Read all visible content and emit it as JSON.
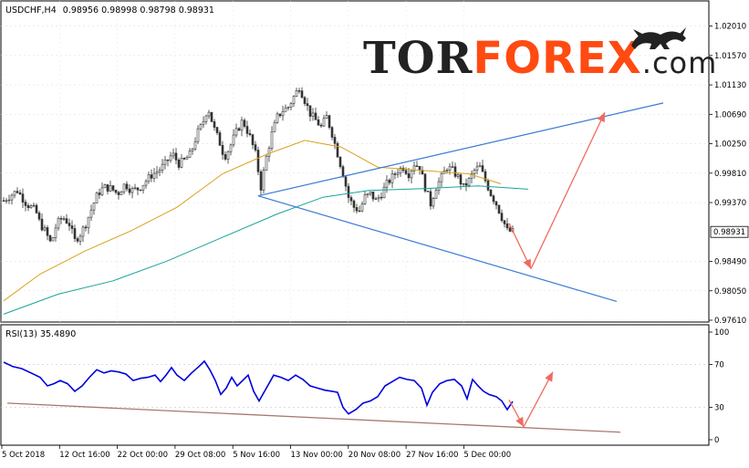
{
  "header": {
    "symbol": "USDCHF,H4",
    "ohlc": "0.98956 0.98998 0.98798 0.98931"
  },
  "logo": {
    "part1": "TOR",
    "part2": "FOREX",
    "part3": ".com",
    "icon": "bull-bear-icon"
  },
  "colors": {
    "candle": "#333333",
    "ma_fast": "#d8a21c",
    "ma_slow": "#1aa39a",
    "trendline": "#3a7bd5",
    "forecast_arrow": "#f06b5e",
    "rsi_line": "#0000dd",
    "rsi_trend": "#a57a6e",
    "logo_dark": "#222222",
    "logo_accent": "#ff4a12",
    "price_label_bg": "#ffffff"
  },
  "chart_data": [
    {
      "type": "candlestick",
      "title": "USDCHF,H4",
      "current_price": "0.98931",
      "ylim": [
        0.9761,
        1.021
      ],
      "y_ticks": [
        "1.02010",
        "1.01570",
        "1.01130",
        "1.00690",
        "1.00250",
        "0.99810",
        "0.99370",
        "0.98931",
        "0.98490",
        "0.98050",
        "0.97610"
      ],
      "x_ticks": [
        "5 Oct 2018",
        "12 Oct 16:00",
        "22 Oct 00:00",
        "29 Oct 08:00",
        "5 Nov 16:00",
        "13 Nov 00:00",
        "20 Nov 08:00",
        "27 Nov 16:00",
        "5 Dec 00:00"
      ],
      "close_path": [
        [
          0,
          0.994
        ],
        [
          15,
          0.9955
        ],
        [
          25,
          0.9935
        ],
        [
          35,
          0.9925
        ],
        [
          40,
          0.9905
        ],
        [
          45,
          0.9895
        ],
        [
          52,
          0.9875
        ],
        [
          58,
          0.9905
        ],
        [
          65,
          0.9915
        ],
        [
          72,
          0.9905
        ],
        [
          78,
          0.988
        ],
        [
          84,
          0.989
        ],
        [
          90,
          0.9905
        ],
        [
          97,
          0.993
        ],
        [
          103,
          0.995
        ],
        [
          110,
          0.996
        ],
        [
          118,
          0.9958
        ],
        [
          125,
          0.995
        ],
        [
          133,
          0.9965
        ],
        [
          140,
          0.9955
        ],
        [
          148,
          0.9958
        ],
        [
          155,
          0.9968
        ],
        [
          162,
          0.9978
        ],
        [
          170,
          0.9985
        ],
        [
          177,
          0.9995
        ],
        [
          185,
          1.001
        ],
        [
          192,
          0.9995
        ],
        [
          198,
          1.0
        ],
        [
          205,
          1.001
        ],
        [
          212,
          1.004
        ],
        [
          218,
          1.0055
        ],
        [
          224,
          1.008
        ],
        [
          230,
          1.005
        ],
        [
          236,
          1.003
        ],
        [
          242,
          1.0005
        ],
        [
          248,
          1.002
        ],
        [
          254,
          1.004
        ],
        [
          262,
          1.006
        ],
        [
          270,
          1.0035
        ],
        [
          276,
          1.001
        ],
        [
          282,
          0.996
        ],
        [
          288,
          1.0005
        ],
        [
          294,
          1.004
        ],
        [
          300,
          1.0065
        ],
        [
          306,
          1.0075
        ],
        [
          312,
          1.008
        ],
        [
          318,
          1.0095
        ],
        [
          324,
          1.011
        ],
        [
          330,
          1.009
        ],
        [
          336,
          1.007
        ],
        [
          342,
          1.006
        ],
        [
          348,
          1.005
        ],
        [
          354,
          1.0065
        ],
        [
          360,
          1.004
        ],
        [
          366,
          1.001
        ],
        [
          372,
          0.998
        ],
        [
          378,
          0.9945
        ],
        [
          384,
          0.993
        ],
        [
          390,
          0.9925
        ],
        [
          396,
          0.9945
        ],
        [
          402,
          0.995
        ],
        [
          408,
          0.994
        ],
        [
          414,
          0.995
        ],
        [
          420,
          0.9965
        ],
        [
          426,
          0.9975
        ],
        [
          432,
          0.9985
        ],
        [
          438,
          0.999
        ],
        [
          444,
          0.998
        ],
        [
          450,
          0.9995
        ],
        [
          456,
          0.999
        ],
        [
          462,
          0.996
        ],
        [
          468,
          0.9935
        ],
        [
          474,
          0.996
        ],
        [
          480,
          0.9975
        ],
        [
          486,
          0.999
        ],
        [
          492,
          0.9985
        ],
        [
          498,
          0.9975
        ],
        [
          504,
          0.996
        ],
        [
          510,
          0.997
        ],
        [
          516,
          0.9985
        ],
        [
          522,
          0.999
        ],
        [
          528,
          0.997
        ],
        [
          534,
          0.995
        ],
        [
          540,
          0.9935
        ],
        [
          546,
          0.9915
        ],
        [
          552,
          0.9895
        ],
        [
          558,
          0.98931
        ]
      ],
      "ma_fast": [
        [
          0,
          0.979
        ],
        [
          40,
          0.983
        ],
        [
          90,
          0.9865
        ],
        [
          140,
          0.9895
        ],
        [
          190,
          0.993
        ],
        [
          240,
          0.998
        ],
        [
          290,
          1.001
        ],
        [
          330,
          1.003
        ],
        [
          370,
          1.002
        ],
        [
          410,
          0.999
        ],
        [
          460,
          0.9985
        ],
        [
          510,
          0.998
        ],
        [
          545,
          0.9965
        ]
      ],
      "ma_slow": [
        [
          0,
          0.977
        ],
        [
          60,
          0.98
        ],
        [
          120,
          0.982
        ],
        [
          180,
          0.985
        ],
        [
          240,
          0.9885
        ],
        [
          300,
          0.992
        ],
        [
          350,
          0.9945
        ],
        [
          400,
          0.9955
        ],
        [
          460,
          0.9958
        ],
        [
          520,
          0.9962
        ],
        [
          575,
          0.9957
        ]
      ],
      "trendlines": [
        {
          "from": [
            283,
            0.9947
          ],
          "to": [
            727,
            1.0086
          ]
        },
        {
          "from": [
            283,
            0.9947
          ],
          "to": [
            676,
            0.9789
          ]
        }
      ],
      "forecast_arrow": [
        [
          558,
          0.9906
        ],
        [
          582,
          0.9838
        ],
        [
          663,
          1.0072
        ]
      ]
    },
    {
      "type": "line",
      "title": "RSI(13) 35.4890",
      "ylim": [
        0,
        100
      ],
      "y_ticks": [
        "100",
        "70",
        "30",
        "0"
      ],
      "rsi": [
        [
          0,
          72
        ],
        [
          10,
          68
        ],
        [
          20,
          66
        ],
        [
          30,
          62
        ],
        [
          40,
          58
        ],
        [
          48,
          50
        ],
        [
          55,
          52
        ],
        [
          62,
          55
        ],
        [
          70,
          52
        ],
        [
          78,
          45
        ],
        [
          86,
          50
        ],
        [
          94,
          58
        ],
        [
          102,
          65
        ],
        [
          110,
          62
        ],
        [
          118,
          64
        ],
        [
          126,
          63
        ],
        [
          134,
          61
        ],
        [
          142,
          55
        ],
        [
          150,
          57
        ],
        [
          158,
          58
        ],
        [
          166,
          60
        ],
        [
          172,
          54
        ],
        [
          178,
          60
        ],
        [
          184,
          67
        ],
        [
          190,
          60
        ],
        [
          198,
          55
        ],
        [
          206,
          62
        ],
        [
          214,
          68
        ],
        [
          220,
          73
        ],
        [
          226,
          65
        ],
        [
          232,
          55
        ],
        [
          238,
          42
        ],
        [
          244,
          48
        ],
        [
          250,
          58
        ],
        [
          256,
          50
        ],
        [
          262,
          55
        ],
        [
          268,
          60
        ],
        [
          274,
          45
        ],
        [
          280,
          36
        ],
        [
          288,
          48
        ],
        [
          296,
          60
        ],
        [
          304,
          58
        ],
        [
          312,
          55
        ],
        [
          320,
          60
        ],
        [
          328,
          56
        ],
        [
          336,
          50
        ],
        [
          344,
          48
        ],
        [
          352,
          46
        ],
        [
          360,
          45
        ],
        [
          366,
          44
        ],
        [
          372,
          30
        ],
        [
          378,
          24
        ],
        [
          386,
          28
        ],
        [
          394,
          34
        ],
        [
          402,
          36
        ],
        [
          410,
          40
        ],
        [
          418,
          50
        ],
        [
          426,
          54
        ],
        [
          434,
          58
        ],
        [
          442,
          56
        ],
        [
          450,
          55
        ],
        [
          458,
          48
        ],
        [
          464,
          32
        ],
        [
          470,
          44
        ],
        [
          478,
          52
        ],
        [
          486,
          55
        ],
        [
          494,
          56
        ],
        [
          502,
          50
        ],
        [
          508,
          38
        ],
        [
          514,
          56
        ],
        [
          520,
          50
        ],
        [
          526,
          45
        ],
        [
          532,
          42
        ],
        [
          540,
          40
        ],
        [
          546,
          36
        ],
        [
          552,
          28
        ],
        [
          558,
          35.489
        ]
      ],
      "rsi_trendline": {
        "from": [
          8,
          34
        ],
        "to": [
          680,
          7
        ]
      },
      "forecast_arrow": [
        [
          558,
          37
        ],
        [
          574,
          12
        ],
        [
          606,
          63
        ]
      ]
    }
  ]
}
